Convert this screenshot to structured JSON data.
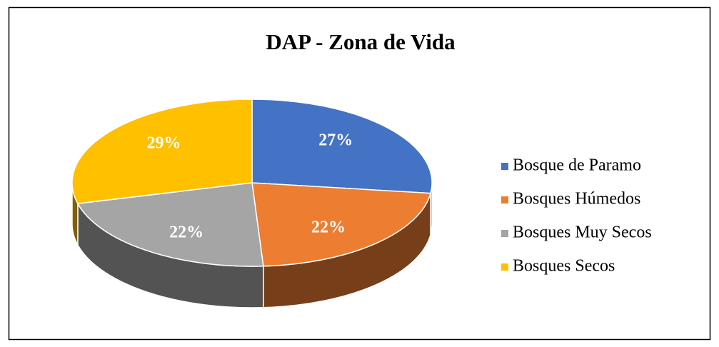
{
  "chart_data": {
    "type": "pie",
    "title": "DAP - Zona de Vida",
    "categories": [
      "Bosque de Paramo",
      "Bosques Húmedos",
      "Bosques Muy Secos",
      "Bosques Secos"
    ],
    "values": [
      27,
      22,
      22,
      29
    ],
    "value_labels": [
      "27%",
      "22%",
      "22%",
      "29%"
    ],
    "colors": [
      "#4472c4",
      "#ed7d31",
      "#a5a5a5",
      "#ffc000"
    ],
    "legend": "right"
  }
}
